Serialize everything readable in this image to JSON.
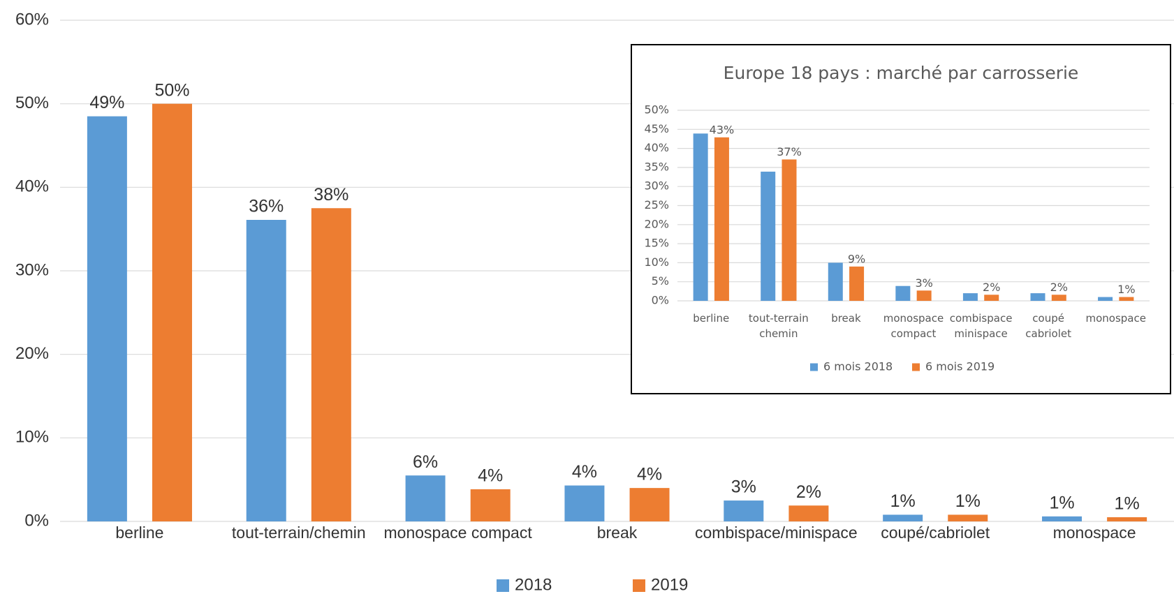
{
  "chart_data": [
    {
      "type": "bar",
      "categories": [
        "berline",
        "tout-terrain/chemin",
        "monospace compact",
        "break",
        "combispace/minispace",
        "coupé/cabriolet",
        "monospace"
      ],
      "series": [
        {
          "name": "2018",
          "color": "#5b9bd5",
          "values": [
            48.5,
            36.1,
            5.5,
            4.3,
            2.5,
            0.8,
            0.6
          ],
          "value_labels": [
            "49%",
            "36%",
            "6%",
            "4%",
            "3%",
            "1%",
            "1%"
          ]
        },
        {
          "name": "2019",
          "color": "#ed7d31",
          "values": [
            50.0,
            37.5,
            3.85,
            4.0,
            1.9,
            0.8,
            0.5
          ],
          "value_labels": [
            "50%",
            "38%",
            "4%",
            "4%",
            "2%",
            "1%",
            "1%"
          ]
        }
      ],
      "ylim": [
        0,
        60
      ],
      "yticks": [
        {
          "value": 0,
          "label": "0%"
        },
        {
          "value": 10,
          "label": "10%"
        },
        {
          "value": 20,
          "label": "20%"
        },
        {
          "value": 30,
          "label": "30%"
        },
        {
          "value": 40,
          "label": "40%"
        },
        {
          "value": 50,
          "label": "50%"
        },
        {
          "value": 60,
          "label": "60%"
        }
      ],
      "grid": true,
      "legend": "bottom"
    },
    {
      "type": "bar",
      "title": "Europe 18 pays : marché par carrosserie",
      "categories": [
        "berline",
        "tout-terrain chemin",
        "break",
        "monospace compact",
        "combispace minispace",
        "coupé cabriolet",
        "monospace"
      ],
      "series": [
        {
          "name": "6 mois 2018",
          "color": "#5b9bd5",
          "values": [
            43.9,
            33.9,
            10.0,
            3.9,
            2.0,
            2.0,
            1.0
          ]
        },
        {
          "name": "6 mois 2019",
          "color": "#ed7d31",
          "values": [
            42.9,
            37.1,
            9.0,
            2.7,
            1.6,
            1.6,
            1.0
          ],
          "value_labels": [
            "43%",
            "37%",
            "9%",
            "3%",
            "2%",
            "2%",
            "1%"
          ]
        }
      ],
      "ylim": [
        0,
        50
      ],
      "yticks": [
        {
          "value": 0,
          "label": "0%"
        },
        {
          "value": 5,
          "label": "5%"
        },
        {
          "value": 10,
          "label": "10%"
        },
        {
          "value": 15,
          "label": "15%"
        },
        {
          "value": 20,
          "label": "20%"
        },
        {
          "value": 25,
          "label": "25%"
        },
        {
          "value": 30,
          "label": "30%"
        },
        {
          "value": 35,
          "label": "35%"
        },
        {
          "value": 40,
          "label": "40%"
        },
        {
          "value": 45,
          "label": "45%"
        },
        {
          "value": 50,
          "label": "50%"
        }
      ],
      "grid": true,
      "legend": "bottom"
    }
  ]
}
